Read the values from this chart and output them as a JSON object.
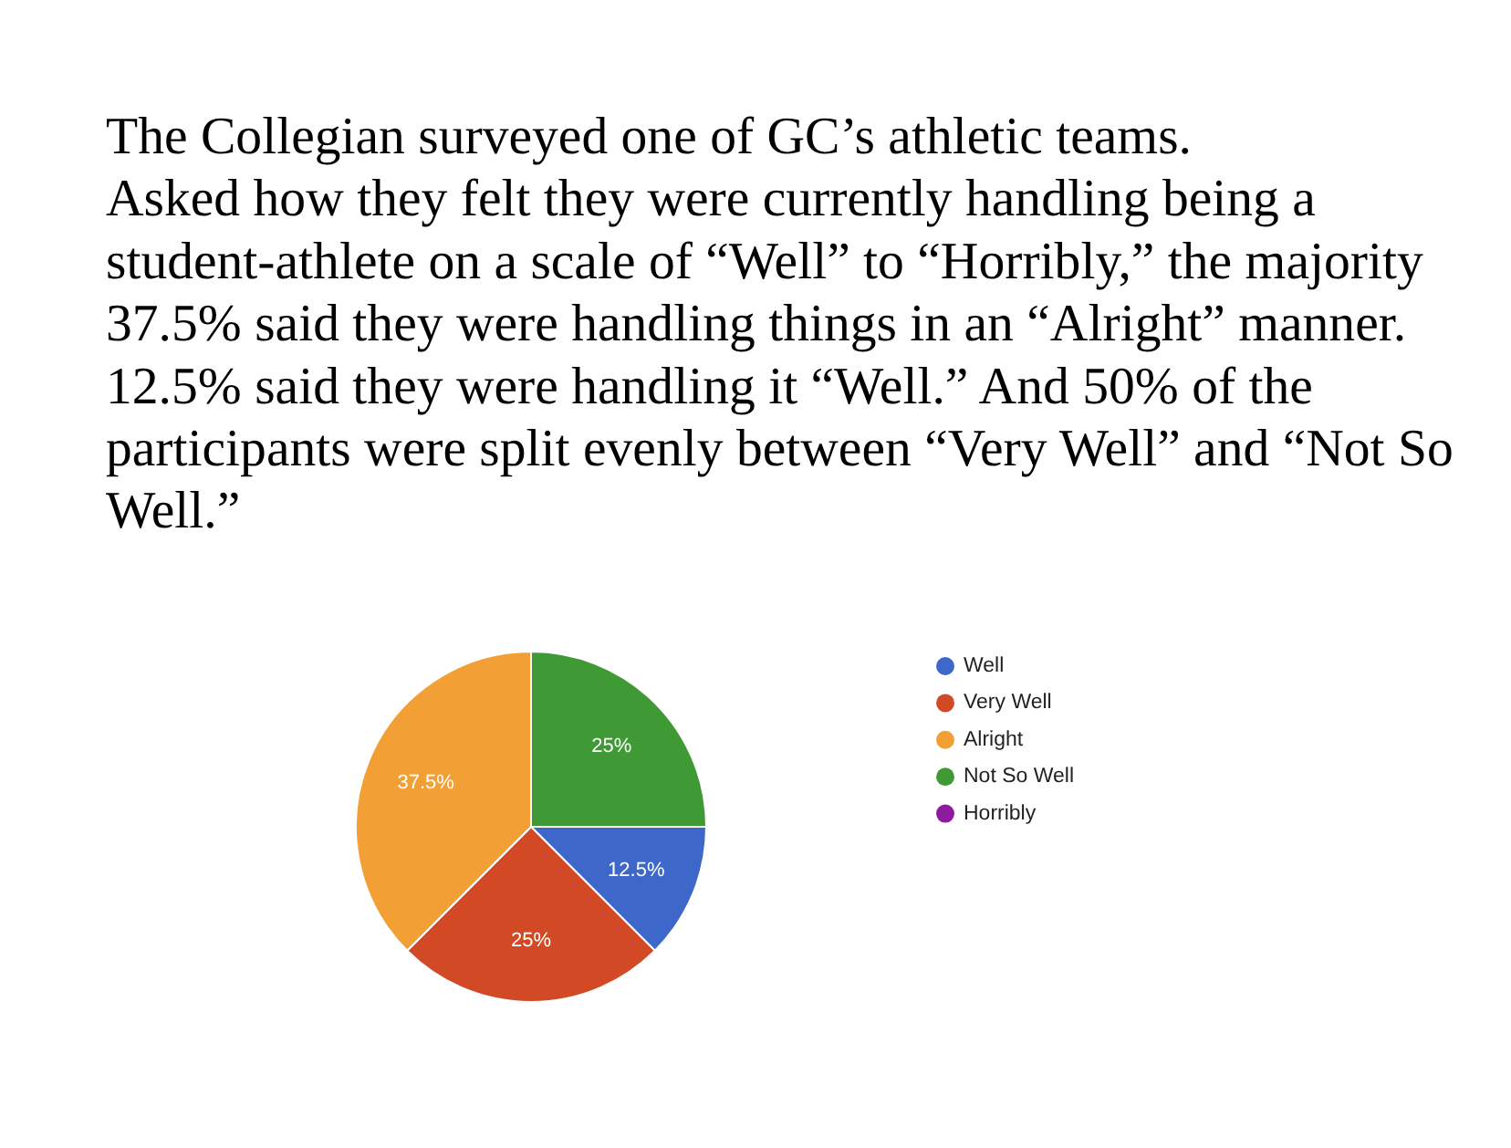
{
  "chart_data": {
    "type": "pie",
    "title": "The Collegian surveyed one of GC’s athletic teams.",
    "subtitle": "Asked how they felt they were currently handling being a student-athlete on a scale of “Well” to “Horribly,” the majority 37.5% said they were handling things in an “Alright” manner. 12.5% said they were handling it “Well.” And 50% of the participants were split evenly between “Very Well” and “Not So Well.”",
    "categories": [
      "Well",
      "Very Well",
      "Alright",
      "Not So Well",
      "Horribly"
    ],
    "values": [
      12.5,
      25,
      37.5,
      25,
      0
    ],
    "colors": [
      "#3d67c9",
      "#d24a25",
      "#f2a035",
      "#3f9a36",
      "#8e1aa0"
    ],
    "value_labels": [
      "12.5%",
      "25%",
      "37.5%",
      "25%",
      null
    ],
    "legend": "right"
  }
}
